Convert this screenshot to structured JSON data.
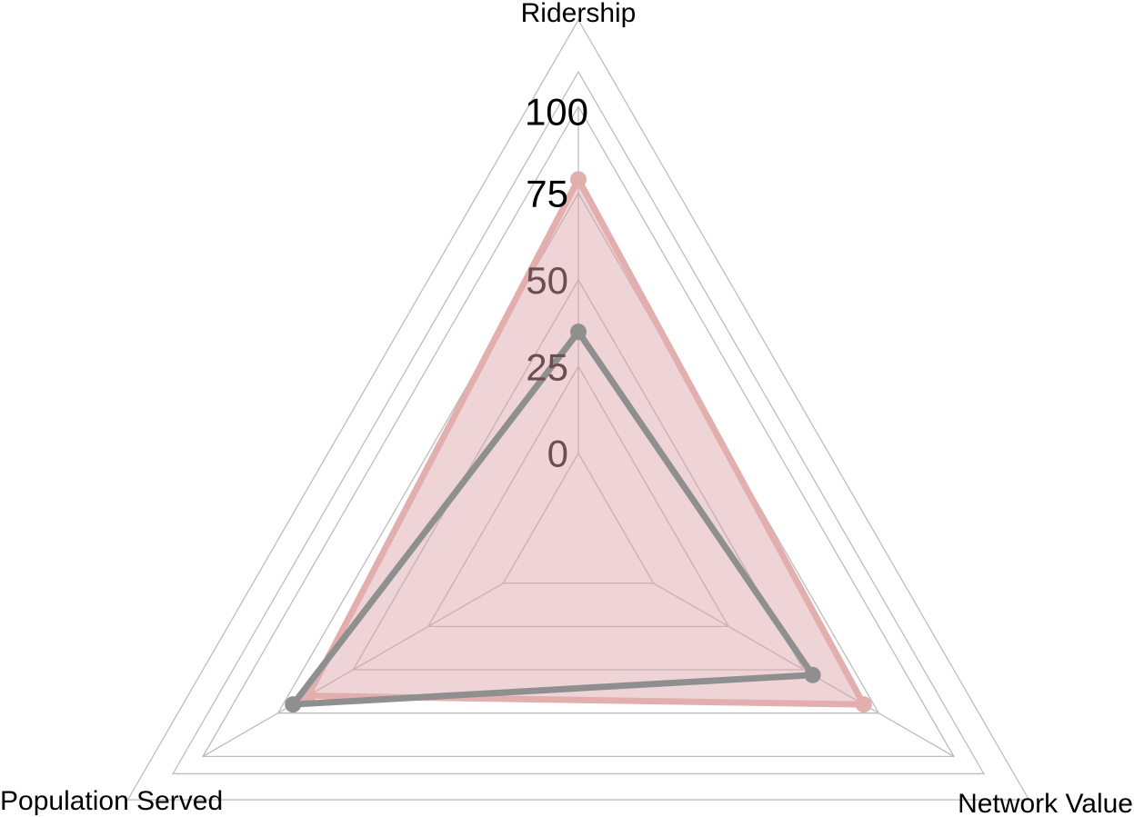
{
  "chart_data": {
    "type": "radar",
    "axes": [
      "Ridership",
      "Network Value",
      "Population Served"
    ],
    "scale": {
      "min": 0,
      "max": 100,
      "inner_offset": 25,
      "ticks": [
        0,
        25,
        50,
        75,
        100
      ],
      "tick_labels": [
        "0",
        "25",
        "50",
        "75",
        "100"
      ],
      "outer_rings": [
        110,
        125
      ]
    },
    "series": [
      {
        "values": [
          79,
          70,
          65
        ],
        "line_color": "#e2aeae",
        "fill_color": "#d9a0a6",
        "fill_opacity": 0.45
      },
      {
        "values": [
          35,
          53,
          70
        ],
        "line_color": "#8f8f8f",
        "fill_color": "none",
        "fill_opacity": 0
      }
    ],
    "grid": true,
    "grid_color": "#bdbdbd",
    "tick_label_colors": [
      "#6b4f4f",
      "#6b4f4f",
      "#6b4f4f",
      "#000000",
      "#000000"
    ]
  }
}
